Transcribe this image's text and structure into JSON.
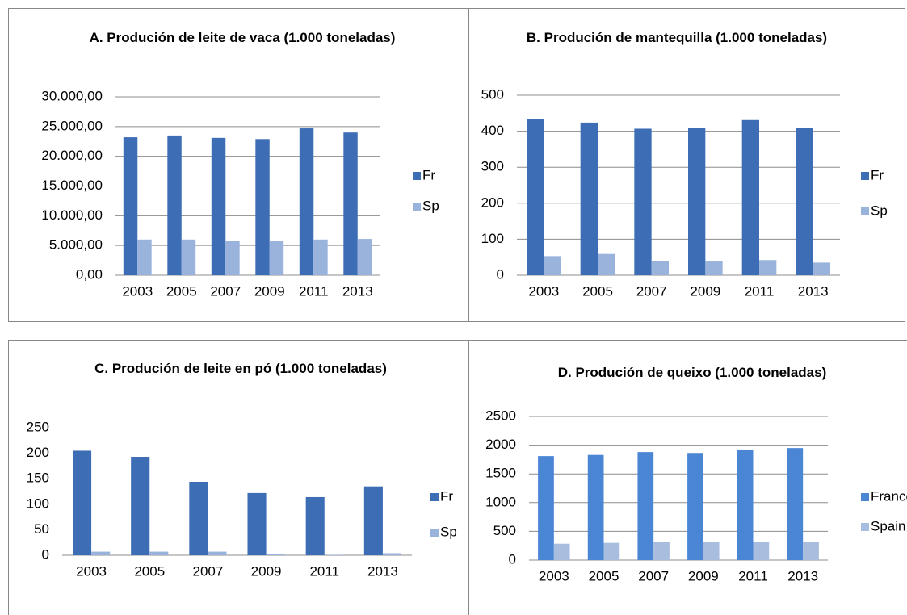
{
  "chart_data": [
    {
      "type": "bar",
      "title": "A. Produción de leite de vaca (1.000 toneladas)",
      "categories": [
        "2003",
        "2005",
        "2007",
        "2009",
        "2011",
        "2013"
      ],
      "series": [
        {
          "name": "Fr",
          "color": "#3c6db5",
          "values": [
            23200,
            23500,
            23100,
            22900,
            24700,
            24000
          ]
        },
        {
          "name": "Sp",
          "color": "#9ab3dc",
          "values": [
            6000,
            6000,
            5800,
            5800,
            6000,
            6100
          ]
        }
      ],
      "ylim": [
        0,
        30000
      ],
      "yticks": [
        {
          "value": 0,
          "label": "0,00"
        },
        {
          "value": 5000,
          "label": "5.000,00"
        },
        {
          "value": 10000,
          "label": "10.000,00"
        },
        {
          "value": 15000,
          "label": "15.000,00"
        },
        {
          "value": 20000,
          "label": "20.000,00"
        },
        {
          "value": 25000,
          "label": "25.000,00"
        },
        {
          "value": 30000,
          "label": "30.000,00"
        }
      ],
      "grid": true,
      "legend": "right"
    },
    {
      "type": "bar",
      "title": "B. Produción de mantequilla (1.000 toneladas)",
      "categories": [
        "2003",
        "2005",
        "2007",
        "2009",
        "2011",
        "2013"
      ],
      "series": [
        {
          "name": "Fr",
          "color": "#3c6db5",
          "values": [
            435,
            424,
            407,
            410,
            431,
            410
          ]
        },
        {
          "name": "Sp",
          "color": "#9ab3dc",
          "values": [
            53,
            59,
            40,
            38,
            42,
            35
          ]
        }
      ],
      "ylim": [
        0,
        500
      ],
      "yticks": [
        0,
        100,
        200,
        300,
        400,
        500
      ],
      "grid": true,
      "legend": "right"
    },
    {
      "type": "bar",
      "title": "C. Produción de leite en pó (1.000 toneladas)",
      "categories": [
        "2003",
        "2005",
        "2007",
        "2009",
        "2011",
        "2013"
      ],
      "series": [
        {
          "name": "Fr",
          "color": "#3c6db5",
          "values": [
            205,
            193,
            144,
            122,
            114,
            135
          ]
        },
        {
          "name": "Sp",
          "color": "#9ab3dc",
          "values": [
            7,
            7,
            7,
            3,
            1,
            4
          ]
        }
      ],
      "ylim": [
        0,
        250
      ],
      "yticks": [
        0,
        50,
        100,
        150,
        200,
        250
      ],
      "grid": false,
      "legend": "right"
    },
    {
      "type": "bar",
      "title": "D. Produción de queixo (1.000 toneladas)",
      "categories": [
        "2003",
        "2005",
        "2007",
        "2009",
        "2011",
        "2013"
      ],
      "series": [
        {
          "name": "France",
          "color": "#4a86d4",
          "values": [
            1810,
            1830,
            1880,
            1865,
            1925,
            1950
          ]
        },
        {
          "name": "Spain",
          "color": "#a9bedf",
          "values": [
            285,
            300,
            310,
            310,
            310,
            310
          ]
        }
      ],
      "ylim": [
        0,
        2500
      ],
      "yticks": [
        0,
        500,
        1000,
        1500,
        2000,
        2500
      ],
      "grid": true,
      "legend": "right"
    }
  ]
}
